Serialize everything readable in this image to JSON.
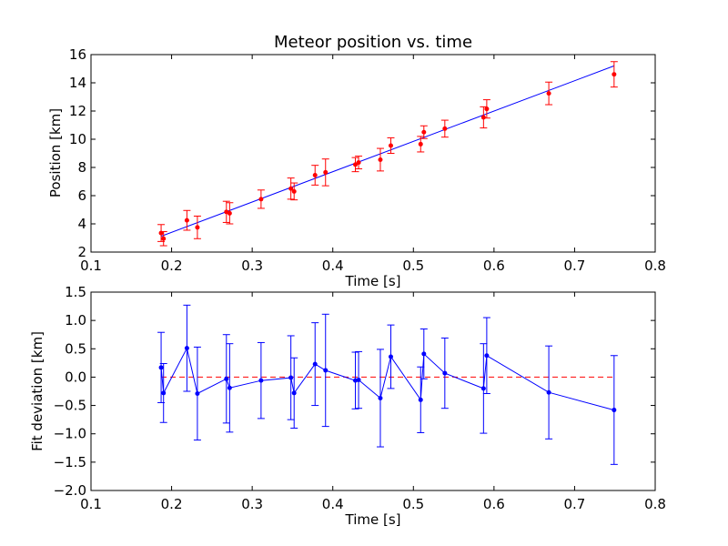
{
  "chart_data": [
    {
      "type": "scatter",
      "title": "Meteor position vs. time",
      "xlabel": "Time [s]",
      "ylabel": "Position [km]",
      "xlim": [
        0.1,
        0.8
      ],
      "ylim": [
        2,
        16
      ],
      "xticks": [
        "0.1",
        "0.2",
        "0.3",
        "0.4",
        "0.5",
        "0.6",
        "0.7",
        "0.8"
      ],
      "yticks": [
        "2",
        "4",
        "6",
        "8",
        "10",
        "12",
        "14",
        "16"
      ],
      "grid": false,
      "point_color": "#ff0000",
      "fit_color": "#0000ff",
      "points": [
        {
          "x": 0.187,
          "y": 3.35,
          "err": 0.6
        },
        {
          "x": 0.19,
          "y": 2.95,
          "err": 0.5
        },
        {
          "x": 0.219,
          "y": 4.25,
          "err": 0.7
        },
        {
          "x": 0.232,
          "y": 3.75,
          "err": 0.8
        },
        {
          "x": 0.268,
          "y": 4.85,
          "err": 0.75
        },
        {
          "x": 0.272,
          "y": 4.75,
          "err": 0.75
        },
        {
          "x": 0.311,
          "y": 5.75,
          "err": 0.65
        },
        {
          "x": 0.348,
          "y": 6.5,
          "err": 0.75
        },
        {
          "x": 0.352,
          "y": 6.3,
          "err": 0.6
        },
        {
          "x": 0.378,
          "y": 7.45,
          "err": 0.7
        },
        {
          "x": 0.391,
          "y": 7.65,
          "err": 0.95
        },
        {
          "x": 0.428,
          "y": 8.2,
          "err": 0.5
        },
        {
          "x": 0.432,
          "y": 8.35,
          "err": 0.45
        },
        {
          "x": 0.459,
          "y": 8.55,
          "err": 0.8
        },
        {
          "x": 0.472,
          "y": 9.55,
          "err": 0.55
        },
        {
          "x": 0.509,
          "y": 9.65,
          "err": 0.55
        },
        {
          "x": 0.513,
          "y": 10.5,
          "err": 0.45
        },
        {
          "x": 0.539,
          "y": 10.75,
          "err": 0.6
        },
        {
          "x": 0.587,
          "y": 11.55,
          "err": 0.75
        },
        {
          "x": 0.591,
          "y": 12.15,
          "err": 0.65
        },
        {
          "x": 0.668,
          "y": 13.25,
          "err": 0.8
        },
        {
          "x": 0.749,
          "y": 14.6,
          "err": 0.9
        }
      ],
      "fit_line": {
        "x": [
          0.187,
          0.749
        ],
        "y": [
          3.12,
          15.2
        ]
      }
    },
    {
      "type": "line",
      "title": "",
      "xlabel": "Time [s]",
      "ylabel": "Fit deviation [km]",
      "xlim": [
        0.1,
        0.8
      ],
      "ylim": [
        -2.0,
        1.5
      ],
      "xticks": [
        "0.1",
        "0.2",
        "0.3",
        "0.4",
        "0.5",
        "0.6",
        "0.7",
        "0.8"
      ],
      "yticks": [
        "−2.0",
        "−1.5",
        "−1.0",
        "−0.5",
        "0.0",
        "0.5",
        "1.0",
        "1.5"
      ],
      "grid": false,
      "line_color": "#0000ff",
      "zero_line_color": "#ff0000",
      "zero_line": {
        "x": [
          0.187,
          0.749
        ],
        "y": 0.0
      },
      "points": [
        {
          "x": 0.187,
          "y": 0.17,
          "err": 0.62
        },
        {
          "x": 0.19,
          "y": -0.28,
          "err": 0.52
        },
        {
          "x": 0.219,
          "y": 0.51,
          "err": 0.76
        },
        {
          "x": 0.232,
          "y": -0.29,
          "err": 0.82
        },
        {
          "x": 0.268,
          "y": -0.03,
          "err": 0.78
        },
        {
          "x": 0.272,
          "y": -0.19,
          "err": 0.78
        },
        {
          "x": 0.311,
          "y": -0.06,
          "err": 0.67
        },
        {
          "x": 0.348,
          "y": -0.01,
          "err": 0.74
        },
        {
          "x": 0.352,
          "y": -0.28,
          "err": 0.62
        },
        {
          "x": 0.378,
          "y": 0.23,
          "err": 0.73
        },
        {
          "x": 0.391,
          "y": 0.12,
          "err": 0.99
        },
        {
          "x": 0.428,
          "y": -0.06,
          "err": 0.5
        },
        {
          "x": 0.432,
          "y": -0.05,
          "err": 0.5
        },
        {
          "x": 0.459,
          "y": -0.37,
          "err": 0.86
        },
        {
          "x": 0.472,
          "y": 0.36,
          "err": 0.56
        },
        {
          "x": 0.509,
          "y": -0.4,
          "err": 0.58
        },
        {
          "x": 0.513,
          "y": 0.41,
          "err": 0.44
        },
        {
          "x": 0.539,
          "y": 0.07,
          "err": 0.62
        },
        {
          "x": 0.587,
          "y": -0.2,
          "err": 0.79
        },
        {
          "x": 0.591,
          "y": 0.38,
          "err": 0.67
        },
        {
          "x": 0.668,
          "y": -0.27,
          "err": 0.82
        },
        {
          "x": 0.749,
          "y": -0.58,
          "err": 0.96
        }
      ]
    }
  ]
}
